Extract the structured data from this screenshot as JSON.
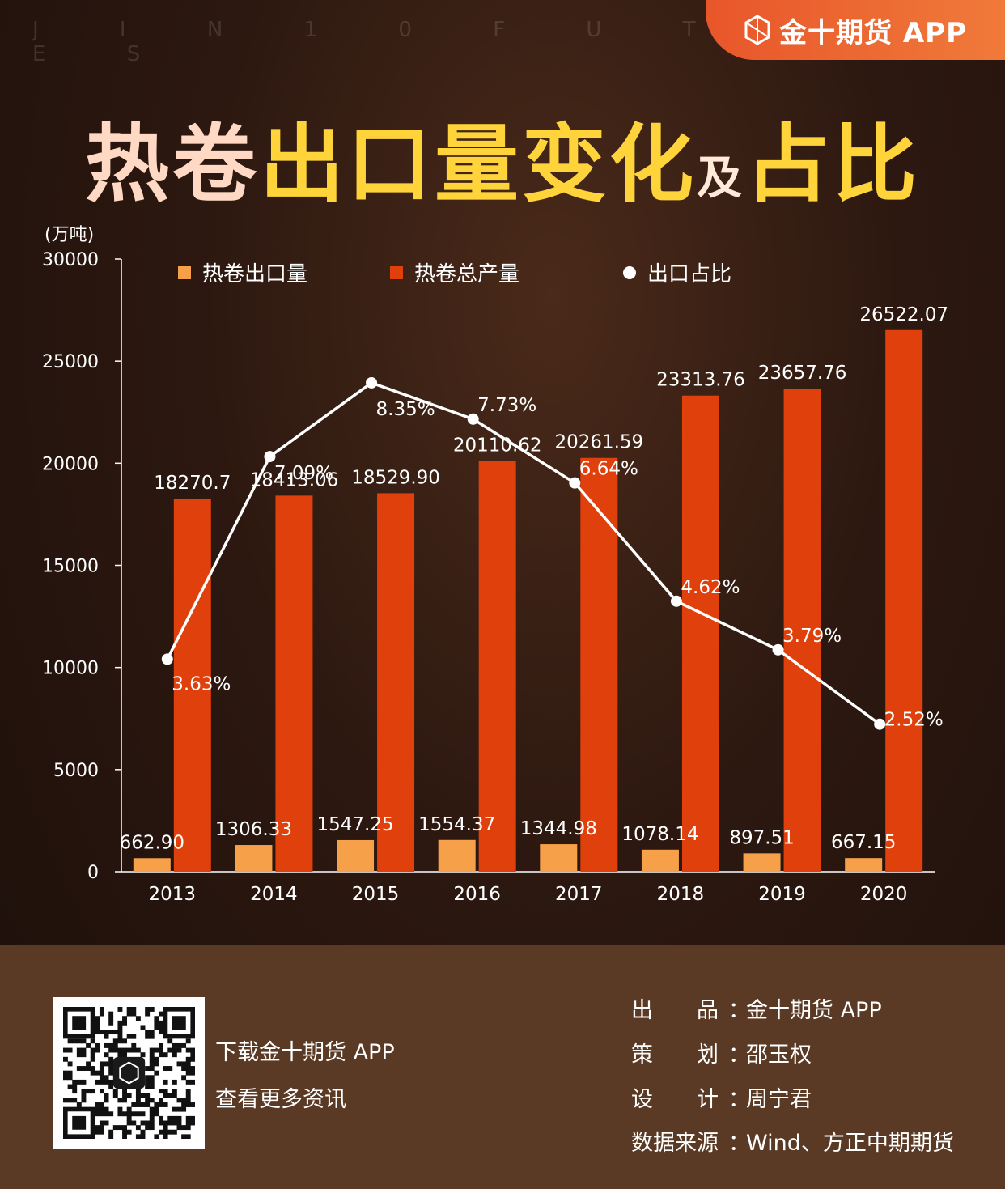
{
  "brand": {
    "app": "金十期货 APP",
    "watermark": "J I N 1 0   F U T U R E S"
  },
  "title": {
    "part1": "热卷",
    "part2": "出口量变化",
    "part3": "及",
    "part4": "占比"
  },
  "chart_data": {
    "type": "bar+line",
    "ylabel": "(万吨)",
    "ylim": [
      0,
      30000
    ],
    "yticks": [
      "0",
      "5000",
      "10000",
      "15000",
      "20000",
      "25000",
      "30000"
    ],
    "categories": [
      "2013",
      "2014",
      "2015",
      "2016",
      "2017",
      "2018",
      "2019",
      "2020"
    ],
    "legend_position": "top",
    "series": [
      {
        "name": "热卷出口量",
        "type": "bar",
        "color": "#f7a04a",
        "values": [
          662.9,
          1306.33,
          1547.25,
          1554.37,
          1344.98,
          1078.14,
          897.51,
          667.15
        ],
        "labels": [
          "662.90",
          "1306.33",
          "1547.25",
          "1554.37",
          "1344.98",
          "1078.14",
          "897.51",
          "667.15"
        ]
      },
      {
        "name": "热卷总产量",
        "type": "bar",
        "color": "#e0400c",
        "values": [
          18270.7,
          18413.06,
          18529.9,
          20110.62,
          20261.59,
          23313.76,
          23657.76,
          26522.07
        ],
        "labels": [
          "18270.7",
          "18413.06",
          "18529.90",
          "20110.62",
          "20261.59",
          "23313.76",
          "23657.76",
          "26522.07"
        ]
      },
      {
        "name": "出口占比",
        "type": "line",
        "color": "#ffffff",
        "values": [
          3.63,
          7.09,
          8.35,
          7.73,
          6.64,
          4.62,
          3.79,
          2.52
        ],
        "labels": [
          "3.63%",
          "7.09%",
          "8.35%",
          "7.73%",
          "6.64%",
          "4.62%",
          "3.79%",
          "2.52%"
        ]
      }
    ]
  },
  "footer": {
    "download_line1": "下载金十期货 APP",
    "download_line2": "查看更多资讯",
    "credits": [
      {
        "key": "出　　品",
        "value": "金十期货 APP"
      },
      {
        "key": "策　　划",
        "value": "邵玉权"
      },
      {
        "key": "设　　计",
        "value": "周宁君"
      },
      {
        "key": "数据来源",
        "value": "Wind、方正中期期货"
      }
    ]
  }
}
